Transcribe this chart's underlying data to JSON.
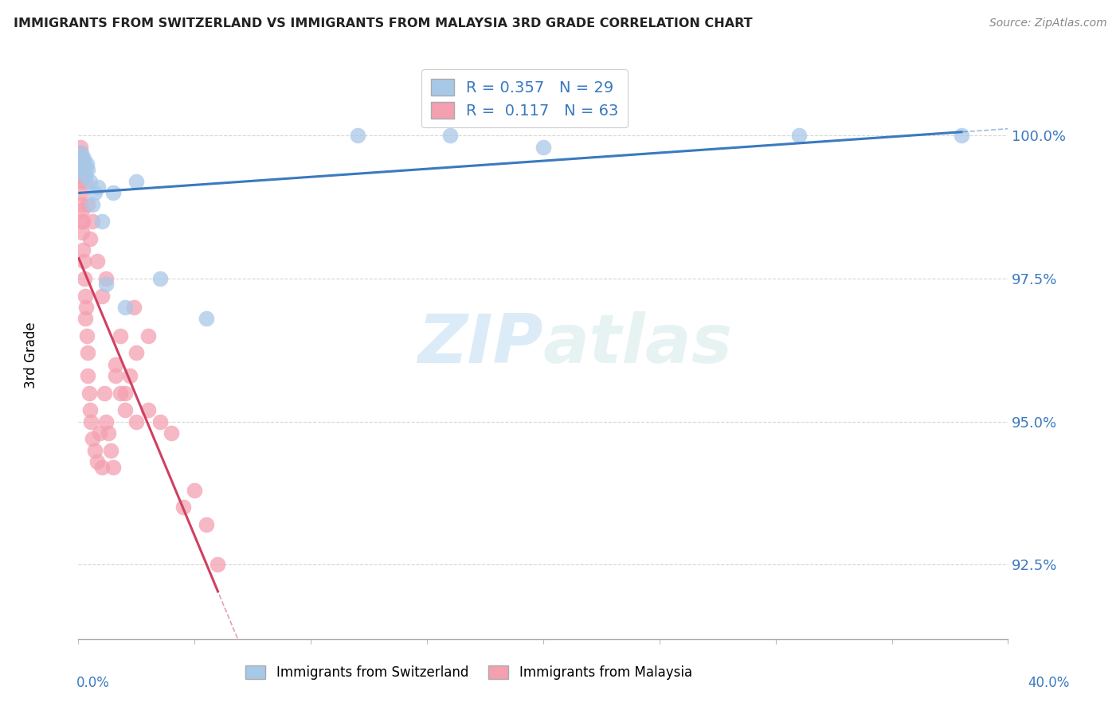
{
  "title": "IMMIGRANTS FROM SWITZERLAND VS IMMIGRANTS FROM MALAYSIA 3RD GRADE CORRELATION CHART",
  "source": "Source: ZipAtlas.com",
  "ylabel": "3rd Grade",
  "y_ticks": [
    92.5,
    95.0,
    97.5,
    100.0
  ],
  "y_tick_labels": [
    "92.5%",
    "95.0%",
    "97.5%",
    "100.0%"
  ],
  "x_range": [
    0.0,
    40.0
  ],
  "y_range": [
    91.2,
    101.5
  ],
  "legend_r_switzerland": "R = 0.357",
  "legend_n_switzerland": "N = 29",
  "legend_r_malaysia": "R =  0.117",
  "legend_n_malaysia": "N = 63",
  "color_switzerland_fill": "#a8c8e8",
  "color_malaysia_fill": "#f4a0b0",
  "trendline_switzerland_color": "#3a7abf",
  "trendline_malaysia_color": "#d04060",
  "sw_x": [
    0.05,
    0.08,
    0.1,
    0.12,
    0.15,
    0.18,
    0.2,
    0.22,
    0.25,
    0.28,
    0.3,
    0.35,
    0.4,
    0.5,
    0.6,
    0.7,
    0.85,
    1.0,
    1.2,
    1.5,
    2.0,
    2.5,
    3.5,
    5.5,
    12.0,
    16.0,
    20.0,
    31.0,
    38.0
  ],
  "sw_y": [
    99.5,
    99.6,
    99.5,
    99.7,
    99.6,
    99.5,
    99.4,
    99.6,
    99.5,
    99.3,
    99.4,
    99.5,
    99.4,
    99.2,
    98.8,
    99.0,
    99.1,
    98.5,
    97.4,
    99.0,
    97.0,
    99.2,
    97.5,
    96.8,
    100.0,
    100.0,
    99.8,
    100.0,
    100.0
  ],
  "my_x": [
    0.02,
    0.03,
    0.04,
    0.05,
    0.06,
    0.07,
    0.08,
    0.09,
    0.1,
    0.12,
    0.14,
    0.15,
    0.16,
    0.18,
    0.2,
    0.22,
    0.25,
    0.28,
    0.3,
    0.32,
    0.35,
    0.38,
    0.4,
    0.45,
    0.5,
    0.55,
    0.6,
    0.7,
    0.8,
    0.9,
    1.0,
    1.1,
    1.2,
    1.3,
    1.4,
    1.5,
    1.6,
    1.8,
    2.0,
    2.2,
    2.5,
    3.0,
    3.5,
    4.0,
    4.5,
    5.0,
    5.5,
    6.0,
    1.2,
    1.8,
    2.4,
    1.6,
    2.0,
    2.5,
    3.0,
    1.0,
    0.8,
    0.6,
    0.5,
    0.4,
    0.3,
    0.2,
    0.1
  ],
  "my_y": [
    99.7,
    99.5,
    99.6,
    99.4,
    99.5,
    99.3,
    99.4,
    99.2,
    99.0,
    98.8,
    98.5,
    98.7,
    98.3,
    98.5,
    98.0,
    97.8,
    97.5,
    97.2,
    96.8,
    97.0,
    96.5,
    96.2,
    95.8,
    95.5,
    95.2,
    95.0,
    94.7,
    94.5,
    94.3,
    94.8,
    94.2,
    95.5,
    95.0,
    94.8,
    94.5,
    94.2,
    95.8,
    95.5,
    95.2,
    95.8,
    96.2,
    96.5,
    95.0,
    94.8,
    93.5,
    93.8,
    93.2,
    92.5,
    97.5,
    96.5,
    97.0,
    96.0,
    95.5,
    95.0,
    95.2,
    97.2,
    97.8,
    98.5,
    98.2,
    98.8,
    99.2,
    99.5,
    99.8
  ]
}
